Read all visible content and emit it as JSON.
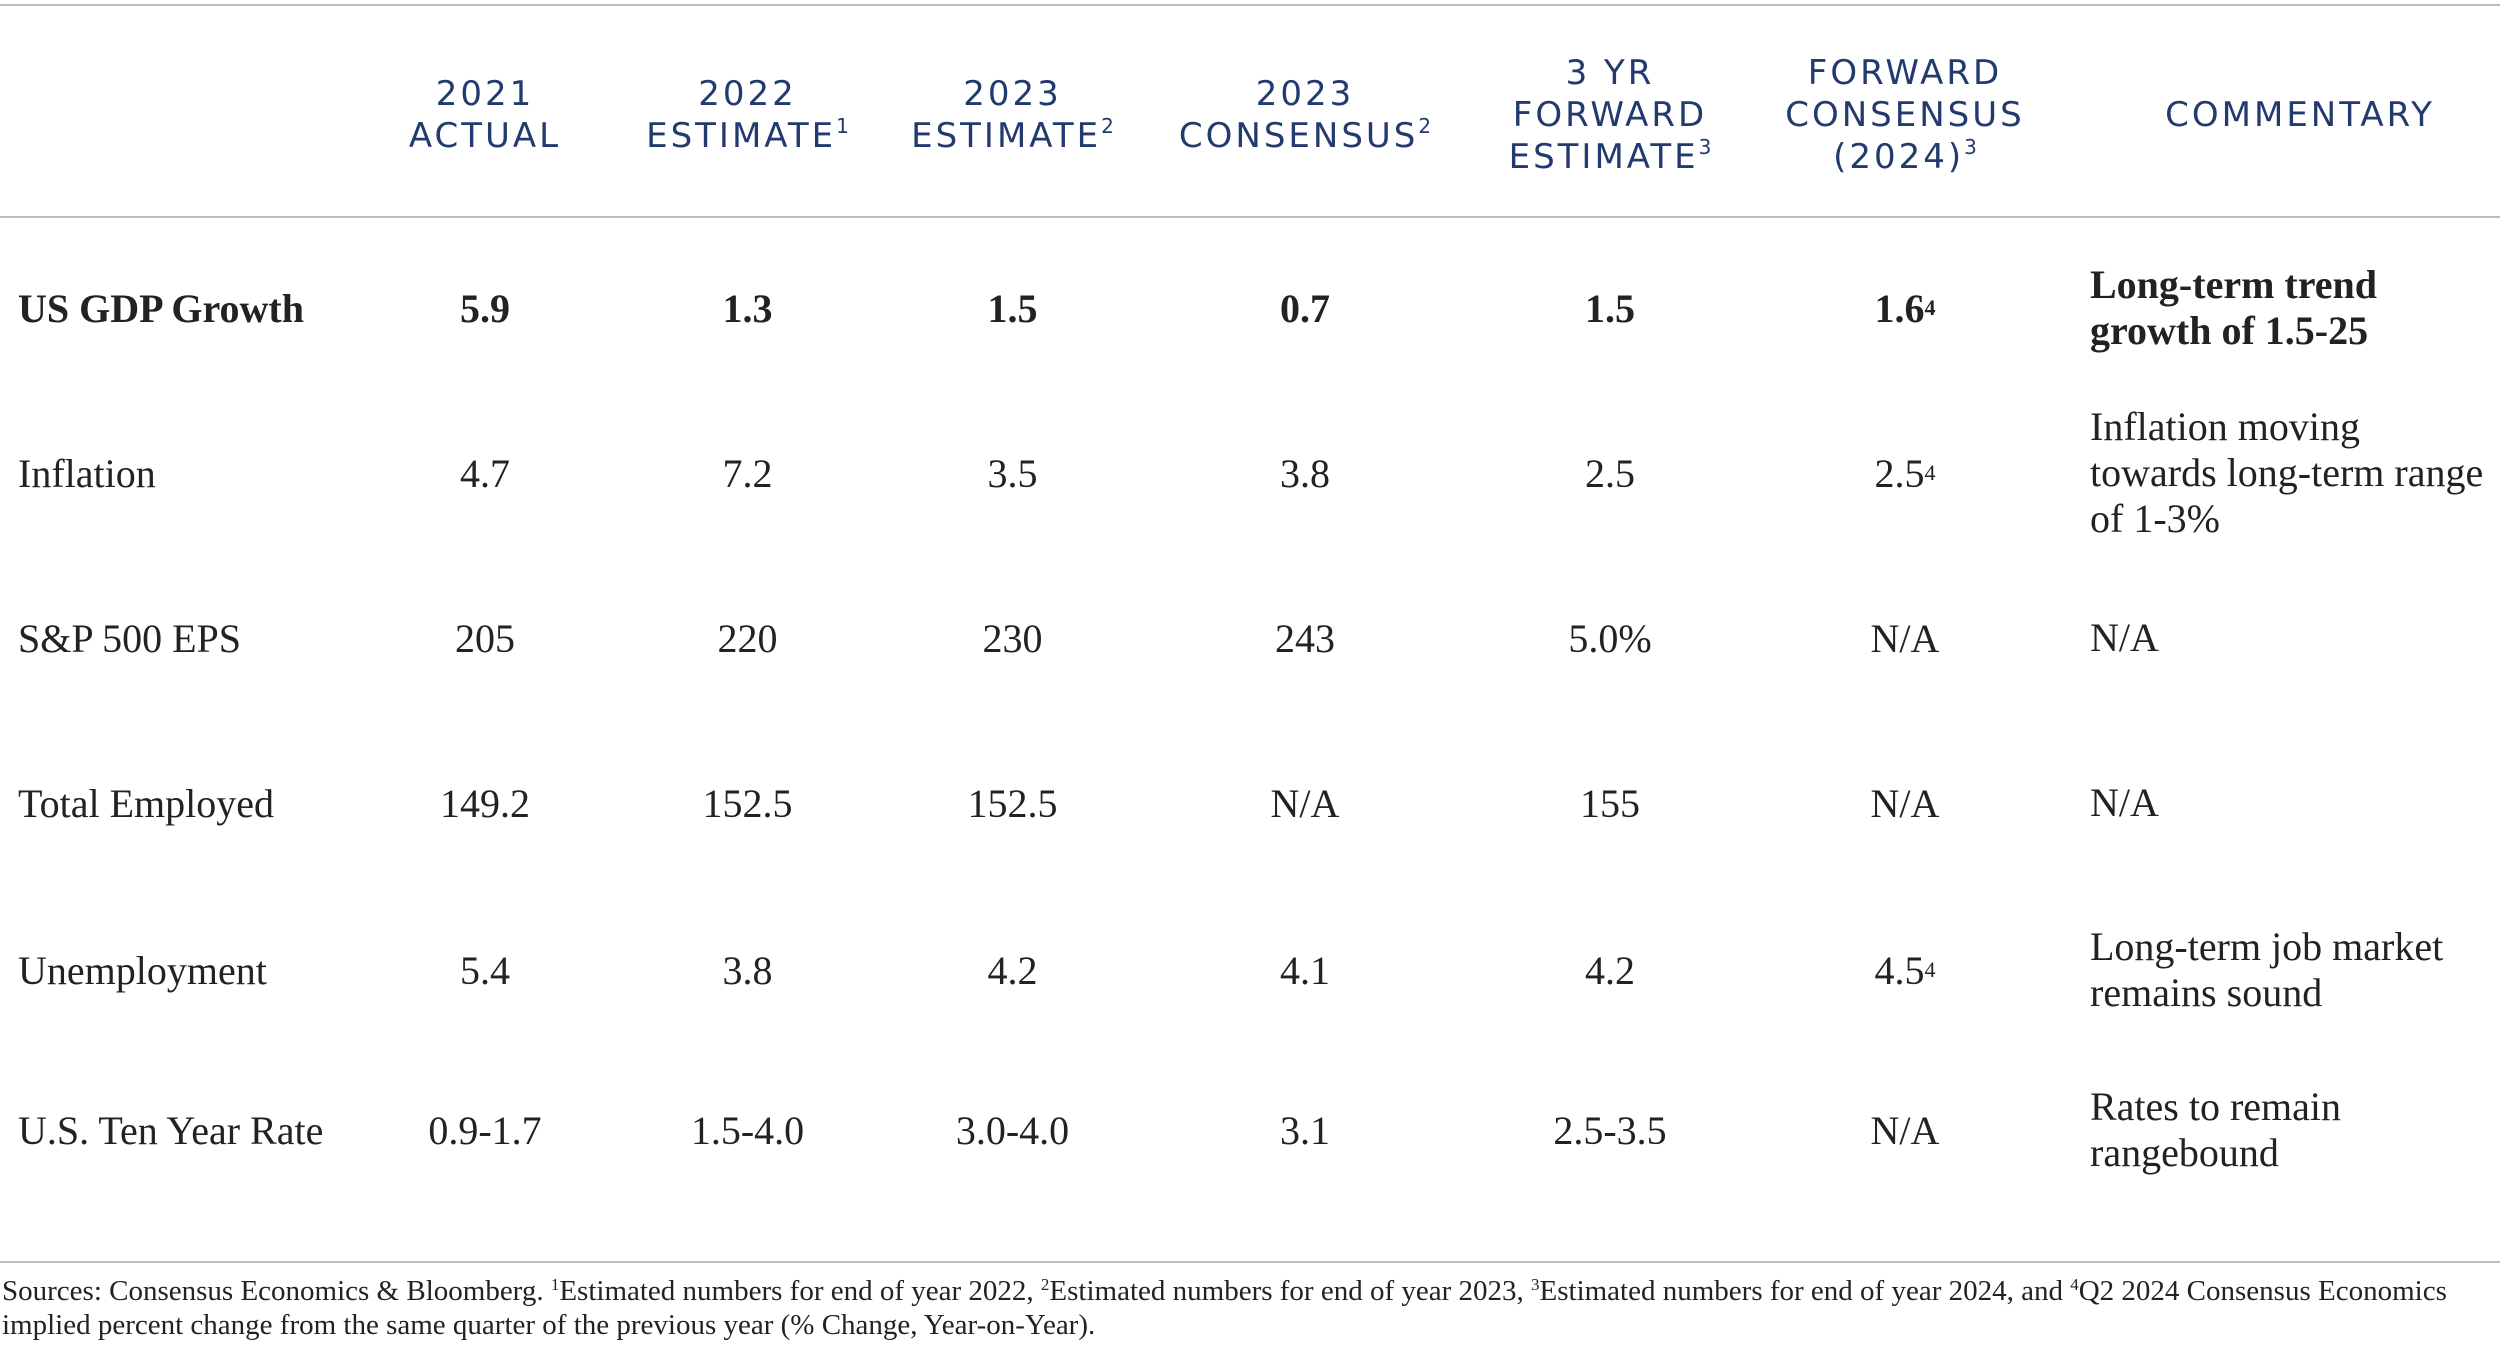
{
  "headers": {
    "c1": "2021\nACTUAL",
    "c2": "2022\nESTIMATE",
    "c2_sup": "1",
    "c3": "2023\nESTIMATE",
    "c3_sup": "2",
    "c4": "2023\nCONSENSUS",
    "c4_sup": "2",
    "c5": "3 YR\nFORWARD\nESTIMATE",
    "c5_sup": "3",
    "c6": "FORWARD\nCONSENSUS\n(2024)",
    "c6_sup": "3",
    "c7": "COMMENTARY"
  },
  "rows": [
    {
      "label": "US GDP Growth",
      "v1": "5.9",
      "v2": "1.3",
      "v3": "1.5",
      "v4": "0.7",
      "v5": "1.5",
      "v6": "1.6",
      "v6_sup": "4",
      "comment_l1": "Long-term trend",
      "comment_l2": "growth of 1.5-25",
      "comment_l3": ""
    },
    {
      "label": "Inflation",
      "v1": "4.7",
      "v2": "7.2",
      "v3": "3.5",
      "v4": "3.8",
      "v5": "2.5",
      "v6": "2.5",
      "v6_sup": "4",
      "comment_l1": "Inflation moving",
      "comment_l2": "towards long-term range",
      "comment_l3": "of 1-3%"
    },
    {
      "label": "S&P 500 EPS",
      "v1": "205",
      "v2": "220",
      "v3": "230",
      "v4": "243",
      "v5": "5.0%",
      "v6": "N/A",
      "v6_sup": "",
      "comment_l1": "N/A",
      "comment_l2": "",
      "comment_l3": ""
    },
    {
      "label": "Total Employed",
      "v1": "149.2",
      "v2": "152.5",
      "v3": "152.5",
      "v4": "N/A",
      "v5": "155",
      "v6": "N/A",
      "v6_sup": "",
      "comment_l1": "N/A",
      "comment_l2": "",
      "comment_l3": ""
    },
    {
      "label": "Unemployment",
      "v1": "5.4",
      "v2": "3.8",
      "v3": "4.2",
      "v4": "4.1",
      "v5": "4.2",
      "v6": "4.5",
      "v6_sup": "4",
      "comment_l1": "Long-term job market",
      "comment_l2": "remains sound",
      "comment_l3": ""
    },
    {
      "label": "U.S. Ten Year Rate",
      "v1": "0.9-1.7",
      "v2": "1.5-4.0",
      "v3": "3.0-4.0",
      "v4": "3.1",
      "v5": "2.5-3.5",
      "v6": "N/A",
      "v6_sup": "",
      "comment_l1": "Rates to remain",
      "comment_l2": "rangebound",
      "comment_l3": ""
    }
  ],
  "footnote": {
    "part1": "Sources: Consensus Economics & Bloomberg. ",
    "s1": "1",
    "t1": "Estimated numbers for end of year 2022, ",
    "s2": "2",
    "t2": "Estimated numbers for end of year 2023, ",
    "s3": "3",
    "t3": "Estimated numbers for end of year 2024, and ",
    "s4": "4",
    "t4": "Q2 2024 Consensus Economics implied percent change from the same quarter of the previous year (% Change, Year-on-Year)."
  }
}
